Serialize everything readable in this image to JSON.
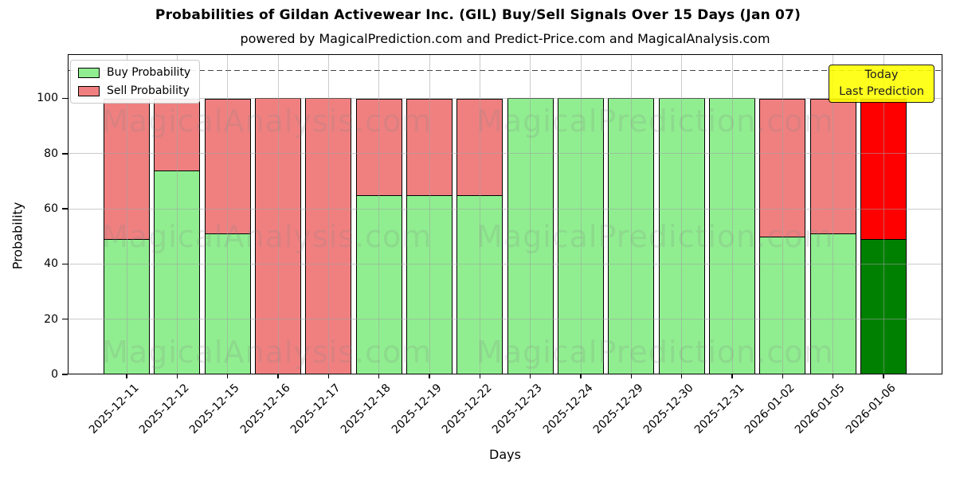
{
  "title": "Probabilities of Gildan Activewear Inc. (GIL) Buy/Sell Signals Over 15 Days (Jan 07)",
  "subtitle": "powered by MagicalPrediction.com and Predict-Price.com and MagicalAnalysis.com",
  "axes": {
    "xlabel": "Days",
    "ylabel": "Probability",
    "yticks": [
      0,
      20,
      40,
      60,
      80,
      100
    ],
    "ylim": [
      0,
      116
    ],
    "grid": true,
    "dashed_guideline_y": 110
  },
  "legend": {
    "position": "upper-left",
    "items": [
      {
        "label": "Buy Probability",
        "color": "#90EE90"
      },
      {
        "label": "Sell Probability",
        "color": "#F08080"
      }
    ]
  },
  "annotation": {
    "line1": "Today",
    "line2": "Last Prediction",
    "bg_color": "#FFFF00"
  },
  "watermark": {
    "left_text": "MagicalAnalysis.com",
    "right_text": "MagicalPrediction.com",
    "color": "#808080"
  },
  "chart_data": {
    "type": "bar",
    "stacked": true,
    "title": "Probabilities of Gildan Activewear Inc. (GIL) Buy/Sell Signals Over 15 Days (Jan 07)",
    "xlabel": "Days",
    "ylabel": "Probability",
    "ylim": [
      0,
      116
    ],
    "categories": [
      "2025-12-11",
      "2025-12-12",
      "2025-12-15",
      "2025-12-16",
      "2025-12-17",
      "2025-12-18",
      "2025-12-19",
      "2025-12-22",
      "2025-12-23",
      "2025-12-24",
      "2025-12-29",
      "2025-12-30",
      "2025-12-31",
      "2026-01-02",
      "2026-01-05",
      "2026-01-06"
    ],
    "series": [
      {
        "name": "Buy Probability",
        "color": "#90EE90",
        "values": [
          49,
          74,
          51,
          0,
          0,
          65,
          65,
          65,
          100,
          100,
          100,
          100,
          100,
          50,
          51,
          49
        ]
      },
      {
        "name": "Sell Probability",
        "color": "#F08080",
        "values": [
          51,
          26,
          49,
          100,
          100,
          35,
          35,
          35,
          0,
          0,
          0,
          0,
          0,
          50,
          49,
          51
        ]
      }
    ],
    "today_index": 15,
    "today_colors": {
      "buy": "#008000",
      "sell": "#FF0000"
    }
  }
}
